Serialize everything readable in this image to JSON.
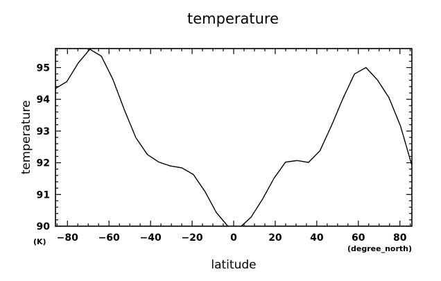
{
  "chart_data": {
    "type": "line",
    "title": "temperature",
    "xlabel": "latitude",
    "ylabel": "temperature",
    "x_unit": "(degree_north)",
    "y_unit": "(K)",
    "xlim": [
      -85.76,
      85.76
    ],
    "ylim": [
      90,
      95.6
    ],
    "grid": false,
    "x_ticks": [
      -80,
      -60,
      -40,
      -20,
      0,
      20,
      40,
      60,
      80
    ],
    "y_ticks": [
      90,
      91,
      92,
      93,
      94,
      95
    ],
    "x_tick_labels": [
      "−80",
      "−60",
      "−40",
      "−20",
      "0",
      "20",
      "40",
      "60",
      "80"
    ],
    "y_tick_labels": [
      "90",
      "91",
      "92",
      "93",
      "94",
      "95"
    ],
    "series": [
      {
        "x": [
          -85.76,
          -80.27,
          -74.74,
          -69.21,
          -63.68,
          -58.14,
          -52.61,
          -47.07,
          -41.54,
          -36.01,
          -30.47,
          -24.94,
          -19.4,
          -13.87,
          -8.33,
          -2.8,
          2.8,
          8.33,
          13.87,
          19.4,
          24.94,
          30.47,
          36.01,
          41.54,
          47.07,
          52.61,
          58.14,
          63.68,
          69.21,
          74.74,
          80.27,
          85.76
        ],
        "y": [
          94.34,
          94.56,
          95.15,
          95.58,
          95.36,
          94.63,
          93.67,
          92.79,
          92.26,
          92.02,
          91.9,
          91.84,
          91.63,
          91.1,
          90.43,
          90.0,
          89.95,
          90.28,
          90.85,
          91.51,
          92.02,
          92.07,
          92.01,
          92.38,
          93.17,
          94.03,
          94.8,
          95.0,
          94.61,
          94.05,
          93.16,
          91.92
        ]
      }
    ]
  }
}
